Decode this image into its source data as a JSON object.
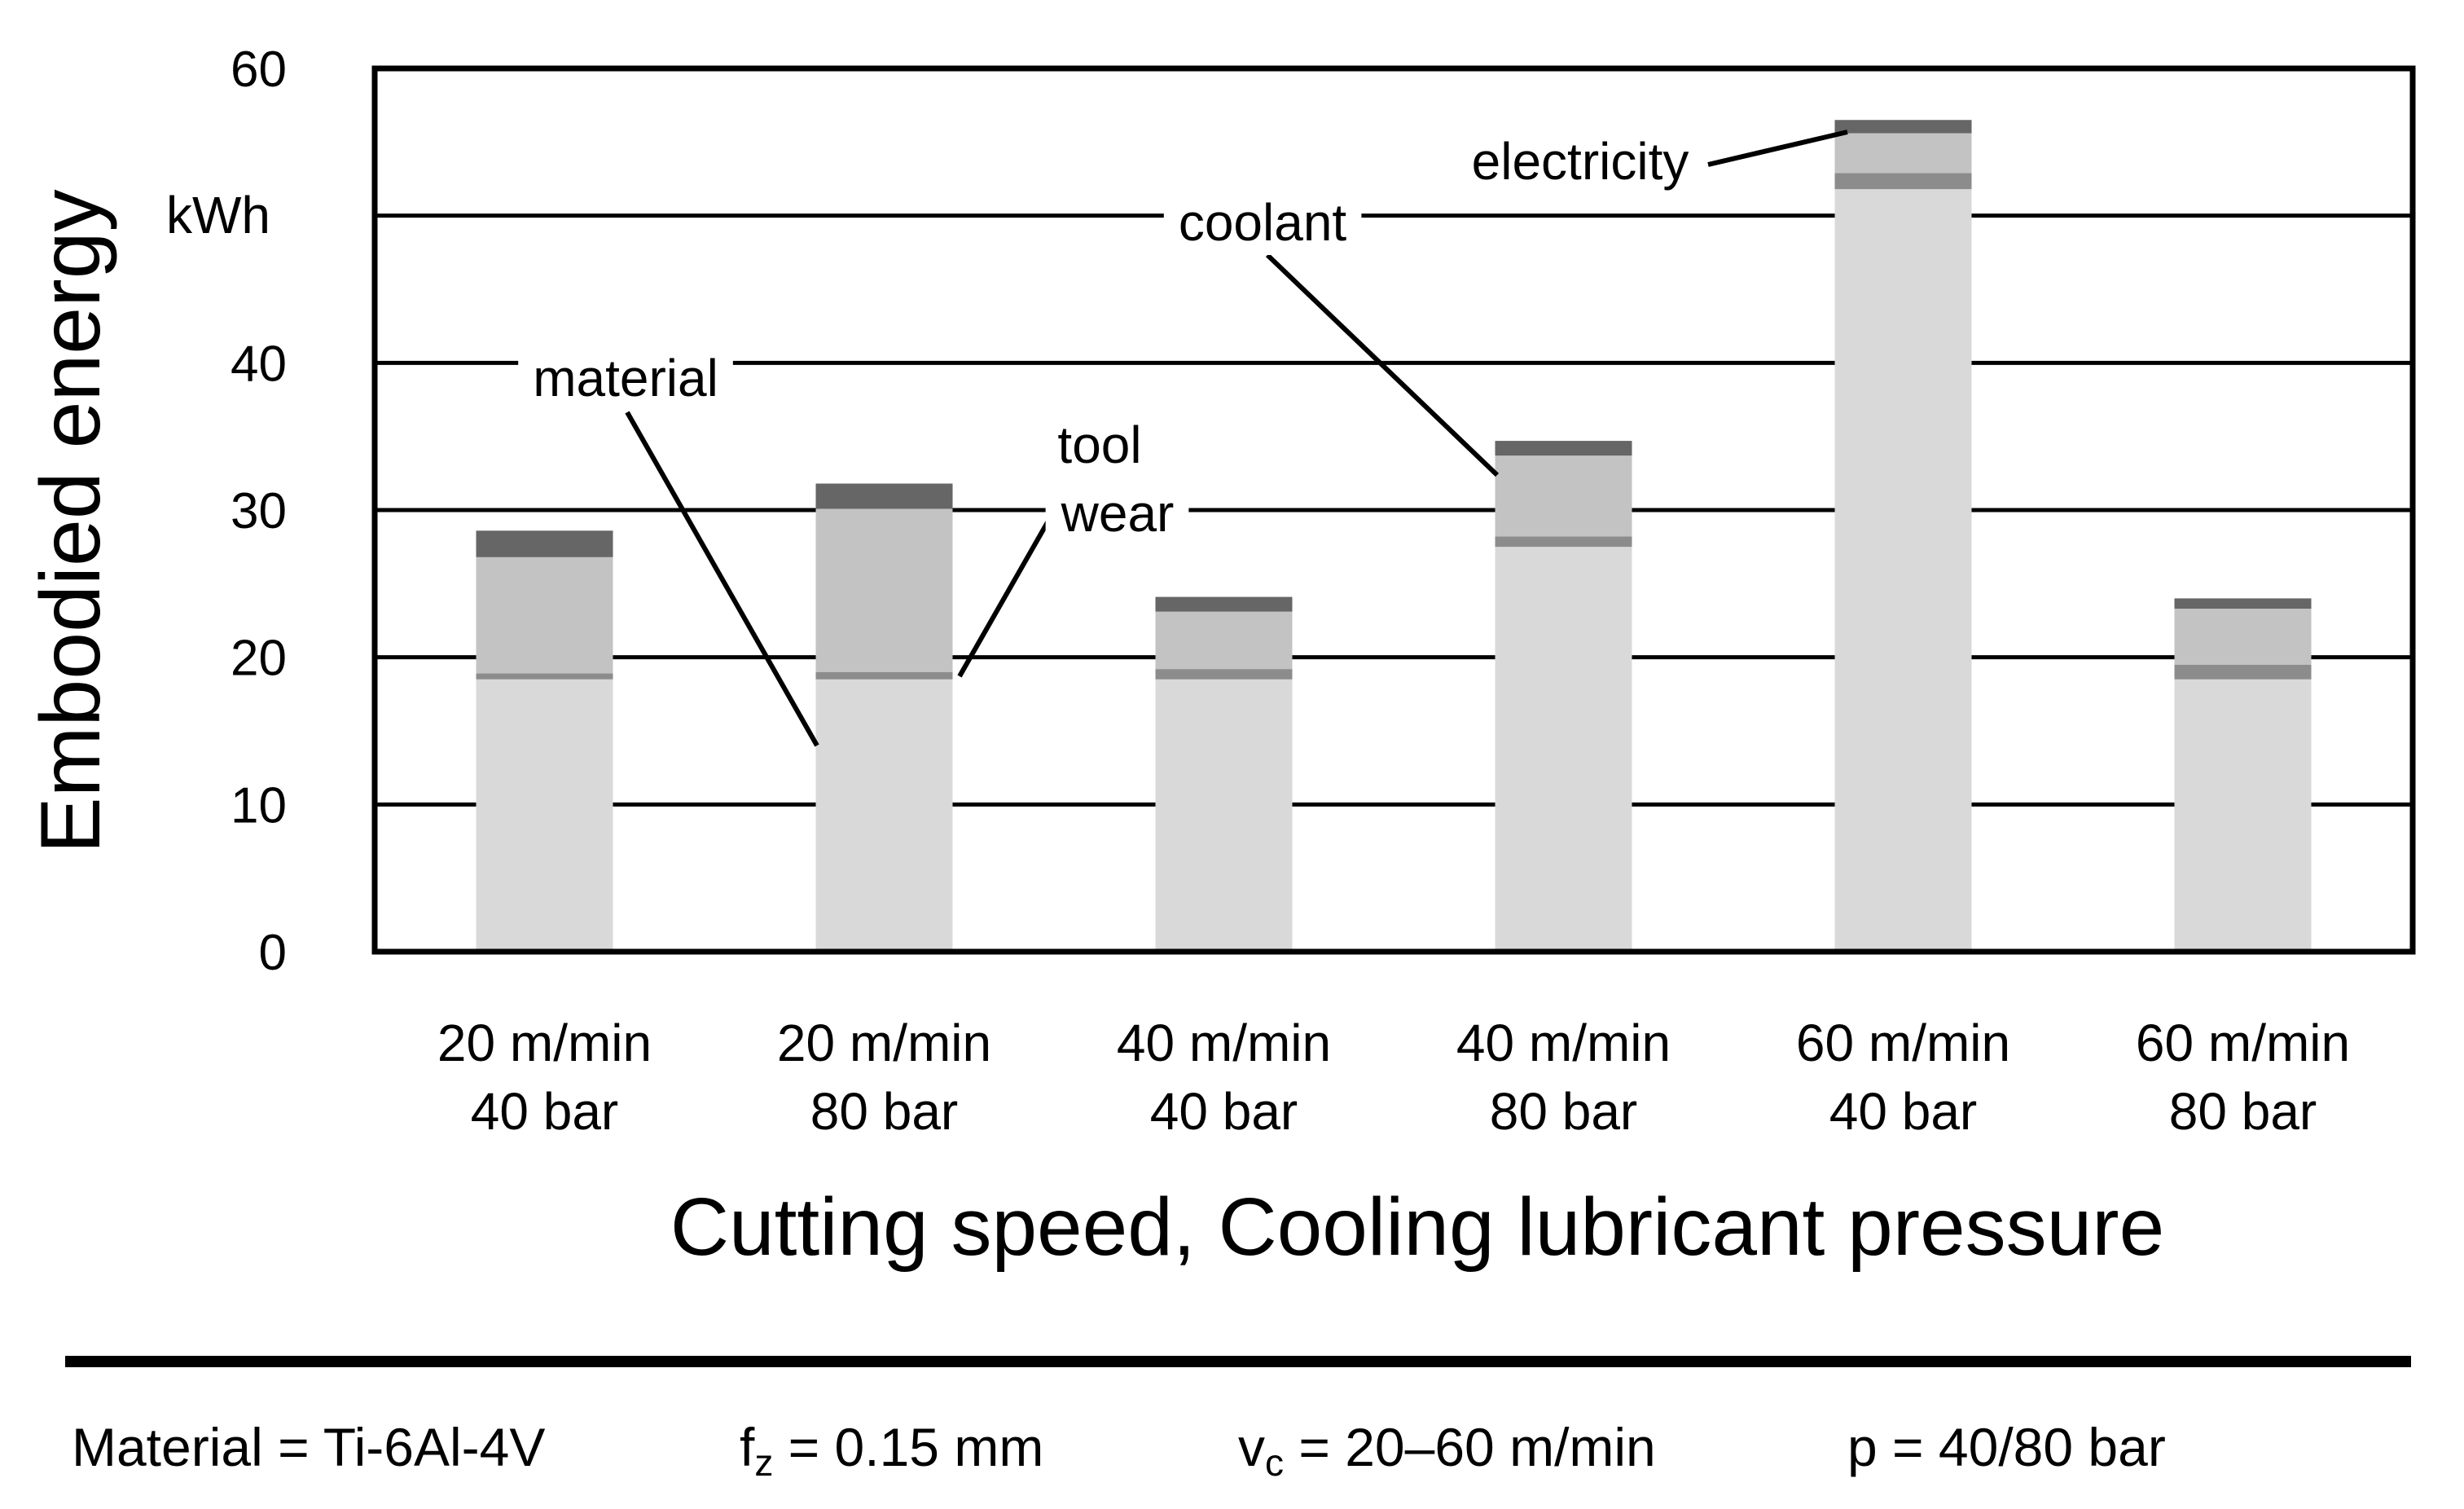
{
  "chart_data": {
    "type": "bar",
    "stacked": true,
    "ylabel": "Embodied energy",
    "yunit": "kWh",
    "xlabel": "Cutting speed, Cooling lubricant pressure",
    "ylim": [
      0,
      60
    ],
    "yticks": [
      0,
      10,
      20,
      30,
      40,
      60
    ],
    "grid": true,
    "categories": [
      {
        "line1": "20 m/min",
        "line2": "40 bar"
      },
      {
        "line1": "20 m/min",
        "line2": "80 bar"
      },
      {
        "line1": "40 m/min",
        "line2": "40 bar"
      },
      {
        "line1": "40 m/min",
        "line2": "80 bar"
      },
      {
        "line1": "60 m/min",
        "line2": "40 bar"
      },
      {
        "line1": "60 m/min",
        "line2": "80 bar"
      }
    ],
    "series": [
      {
        "name": "material",
        "color": "#d9d9d9",
        "values": [
          18.5,
          18.5,
          18.5,
          27.5,
          51.8,
          18.5
        ]
      },
      {
        "name": "tool wear",
        "color": "#8c8c8c",
        "values": [
          0.4,
          0.5,
          0.7,
          0.7,
          1.1,
          1.0
        ]
      },
      {
        "name": "coolant",
        "color": "#c3c3c3",
        "values": [
          7.9,
          11.1,
          3.9,
          5.5,
          2.7,
          3.8
        ]
      },
      {
        "name": "electricity",
        "color": "#666666",
        "values": [
          1.8,
          1.7,
          1.0,
          1.0,
          0.9,
          0.7
        ]
      }
    ],
    "annotations": {
      "material": "material",
      "tool_wear_line1": "tool",
      "tool_wear_line2": "wear",
      "coolant": "coolant",
      "electricity": "electricity"
    }
  },
  "parameters": {
    "material": "Material = Ti-6Al-4V",
    "fz_symbol": "f",
    "fz_sub": "z",
    "fz_value": " = 0.15 mm",
    "vc_symbol": "v",
    "vc_sub": "c",
    "vc_value": " = 20–60 m/min",
    "pressure": "p = 40/80 bar"
  }
}
